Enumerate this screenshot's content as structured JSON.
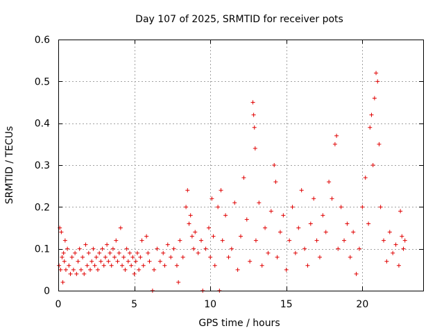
{
  "chart_data": {
    "type": "scatter",
    "title": "Day 107 of 2025, SRMTID for receiver pots",
    "xlabel": "GPS time / hours",
    "ylabel": "SRMTID / TECUs",
    "xlim": [
      0,
      24
    ],
    "ylim": [
      0,
      0.6
    ],
    "x_ticks": [
      0,
      5,
      10,
      15,
      20
    ],
    "x_tick_labels": [
      "0",
      "5",
      "10",
      "15",
      "20"
    ],
    "y_ticks": [
      0,
      0.1,
      0.2,
      0.3,
      0.4,
      0.5,
      0.6
    ],
    "y_tick_labels": [
      "0",
      "0.1",
      "0.2",
      "0.3",
      "0.4",
      "0.5",
      "0.6"
    ],
    "grid": true,
    "marker": "plus",
    "color": "#e00000",
    "series": [
      {
        "name": "SRMTID",
        "points": [
          [
            0.05,
            0.06
          ],
          [
            0.1,
            0.15
          ],
          [
            0.15,
            0.05
          ],
          [
            0.2,
            0.14
          ],
          [
            0.25,
            0.08
          ],
          [
            0.3,
            0.02
          ],
          [
            0.35,
            0.09
          ],
          [
            0.4,
            0.07
          ],
          [
            0.45,
            0.12
          ],
          [
            0.5,
            0.05
          ],
          [
            0.6,
            0.1
          ],
          [
            0.7,
            0.06
          ],
          [
            0.8,
            0.04
          ],
          [
            0.9,
            0.08
          ],
          [
            1.0,
            0.05
          ],
          [
            1.1,
            0.09
          ],
          [
            1.2,
            0.04
          ],
          [
            1.3,
            0.07
          ],
          [
            1.4,
            0.1
          ],
          [
            1.5,
            0.05
          ],
          [
            1.6,
            0.08
          ],
          [
            1.7,
            0.04
          ],
          [
            1.8,
            0.11
          ],
          [
            1.9,
            0.06
          ],
          [
            2.0,
            0.09
          ],
          [
            2.1,
            0.05
          ],
          [
            2.2,
            0.07
          ],
          [
            2.3,
            0.1
          ],
          [
            2.4,
            0.06
          ],
          [
            2.5,
            0.08
          ],
          [
            2.6,
            0.05
          ],
          [
            2.7,
            0.09
          ],
          [
            2.8,
            0.07
          ],
          [
            2.9,
            0.1
          ],
          [
            3.0,
            0.06
          ],
          [
            3.1,
            0.08
          ],
          [
            3.2,
            0.11
          ],
          [
            3.3,
            0.07
          ],
          [
            3.4,
            0.09
          ],
          [
            3.5,
            0.06
          ],
          [
            3.6,
            0.1
          ],
          [
            3.7,
            0.08
          ],
          [
            3.8,
            0.12
          ],
          [
            3.9,
            0.07
          ],
          [
            4.0,
            0.09
          ],
          [
            4.1,
            0.15
          ],
          [
            4.2,
            0.06
          ],
          [
            4.3,
            0.08
          ],
          [
            4.4,
            0.05
          ],
          [
            4.5,
            0.1
          ],
          [
            4.6,
            0.07
          ],
          [
            4.7,
            0.09
          ],
          [
            4.8,
            0.06
          ],
          [
            4.9,
            0.08
          ],
          [
            5.0,
            0.04
          ],
          [
            5.1,
            0.07
          ],
          [
            5.2,
            0.09
          ],
          [
            5.3,
            0.05
          ],
          [
            5.4,
            0.08
          ],
          [
            5.5,
            0.12
          ],
          [
            5.6,
            0.06
          ],
          [
            5.8,
            0.13
          ],
          [
            5.9,
            0.09
          ],
          [
            6.0,
            0.07
          ],
          [
            6.2,
            0.0
          ],
          [
            6.3,
            0.05
          ],
          [
            6.5,
            0.1
          ],
          [
            6.7,
            0.07
          ],
          [
            6.9,
            0.09
          ],
          [
            7.0,
            0.06
          ],
          [
            7.2,
            0.11
          ],
          [
            7.4,
            0.08
          ],
          [
            7.6,
            0.1
          ],
          [
            7.8,
            0.06
          ],
          [
            7.9,
            0.02
          ],
          [
            8.0,
            0.12
          ],
          [
            8.2,
            0.08
          ],
          [
            8.4,
            0.2
          ],
          [
            8.5,
            0.24
          ],
          [
            8.6,
            0.16
          ],
          [
            8.7,
            0.18
          ],
          [
            8.8,
            0.13
          ],
          [
            8.9,
            0.1
          ],
          [
            9.0,
            0.14
          ],
          [
            9.2,
            0.09
          ],
          [
            9.4,
            0.12
          ],
          [
            9.5,
            0.0
          ],
          [
            9.7,
            0.1
          ],
          [
            9.9,
            0.15
          ],
          [
            10.0,
            0.08
          ],
          [
            10.1,
            0.22
          ],
          [
            10.2,
            0.13
          ],
          [
            10.3,
            0.06
          ],
          [
            10.5,
            0.2
          ],
          [
            10.6,
            0.0
          ],
          [
            10.7,
            0.24
          ],
          [
            10.8,
            0.12
          ],
          [
            11.0,
            0.18
          ],
          [
            11.2,
            0.08
          ],
          [
            11.4,
            0.1
          ],
          [
            11.6,
            0.21
          ],
          [
            11.8,
            0.05
          ],
          [
            12.0,
            0.13
          ],
          [
            12.2,
            0.27
          ],
          [
            12.4,
            0.17
          ],
          [
            12.6,
            0.07
          ],
          [
            12.8,
            0.45
          ],
          [
            12.85,
            0.42
          ],
          [
            12.9,
            0.39
          ],
          [
            12.95,
            0.34
          ],
          [
            13.0,
            0.12
          ],
          [
            13.2,
            0.21
          ],
          [
            13.4,
            0.06
          ],
          [
            13.6,
            0.15
          ],
          [
            13.8,
            0.09
          ],
          [
            14.0,
            0.19
          ],
          [
            14.2,
            0.3
          ],
          [
            14.3,
            0.26
          ],
          [
            14.4,
            0.08
          ],
          [
            14.6,
            0.14
          ],
          [
            14.8,
            0.18
          ],
          [
            15.0,
            0.05
          ],
          [
            15.2,
            0.12
          ],
          [
            15.4,
            0.2
          ],
          [
            15.6,
            0.09
          ],
          [
            15.8,
            0.15
          ],
          [
            16.0,
            0.24
          ],
          [
            16.2,
            0.1
          ],
          [
            16.4,
            0.06
          ],
          [
            16.6,
            0.16
          ],
          [
            16.8,
            0.22
          ],
          [
            17.0,
            0.12
          ],
          [
            17.2,
            0.08
          ],
          [
            17.4,
            0.18
          ],
          [
            17.6,
            0.14
          ],
          [
            17.8,
            0.26
          ],
          [
            18.0,
            0.22
          ],
          [
            18.2,
            0.35
          ],
          [
            18.3,
            0.37
          ],
          [
            18.4,
            0.1
          ],
          [
            18.6,
            0.2
          ],
          [
            18.8,
            0.12
          ],
          [
            19.0,
            0.16
          ],
          [
            19.2,
            0.08
          ],
          [
            19.4,
            0.14
          ],
          [
            19.6,
            0.04
          ],
          [
            19.8,
            0.1
          ],
          [
            20.0,
            0.2
          ],
          [
            20.2,
            0.27
          ],
          [
            20.4,
            0.16
          ],
          [
            20.5,
            0.39
          ],
          [
            20.6,
            0.42
          ],
          [
            20.7,
            0.3
          ],
          [
            20.8,
            0.46
          ],
          [
            20.9,
            0.52
          ],
          [
            21.0,
            0.5
          ],
          [
            21.1,
            0.35
          ],
          [
            21.2,
            0.2
          ],
          [
            21.4,
            0.12
          ],
          [
            21.6,
            0.07
          ],
          [
            21.8,
            0.14
          ],
          [
            22.0,
            0.09
          ],
          [
            22.2,
            0.11
          ],
          [
            22.4,
            0.06
          ],
          [
            22.5,
            0.19
          ],
          [
            22.6,
            0.13
          ],
          [
            22.7,
            0.1
          ],
          [
            22.8,
            0.12
          ]
        ]
      }
    ]
  }
}
